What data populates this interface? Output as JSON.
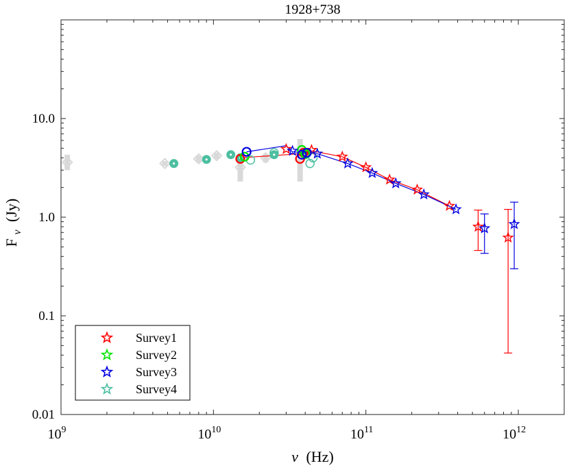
{
  "chart_data": {
    "type": "scatter",
    "title": "1928+738",
    "xlabel_symbol": "ν",
    "xlabel_unit": "(Hz)",
    "ylabel_main": "F",
    "ylabel_sub": "ν",
    "ylabel_unit": "(Jy)",
    "xscale": "log",
    "yscale": "log",
    "xlim": [
      1000000000.0,
      2000000000000.0
    ],
    "ylim": [
      0.01,
      100
    ],
    "x_ticks": [
      {
        "base": "10",
        "exp": "9",
        "value": 1000000000.0
      },
      {
        "base": "10",
        "exp": "10",
        "value": 10000000000.0
      },
      {
        "base": "10",
        "exp": "11",
        "value": 100000000000.0
      },
      {
        "base": "10",
        "exp": "12",
        "value": 1000000000000.0
      }
    ],
    "y_ticks": [
      {
        "label": "0.01",
        "value": 0.01
      },
      {
        "label": "0.1",
        "value": 0.1
      },
      {
        "label": "1.0",
        "value": 1.0
      },
      {
        "label": "10.0",
        "value": 10.0
      }
    ],
    "legend_position": "bottom-left",
    "legend": [
      {
        "label": "Survey1",
        "color": "#ff0000"
      },
      {
        "label": "Survey2",
        "color": "#00e600"
      },
      {
        "label": "Survey3",
        "color": "#0000e0"
      },
      {
        "label": "Survey4",
        "color": "#4cbfa0"
      }
    ],
    "background_points_color": "#d9d9d9",
    "background_points": [
      {
        "x": 1100000000.0,
        "y": 3.6,
        "ylo": 3.0,
        "yhi": 4.3
      },
      {
        "x": 4800000000.0,
        "y": 3.5,
        "ylo": 3.3,
        "yhi": 3.7
      },
      {
        "x": 8000000000.0,
        "y": 3.9,
        "ylo": 3.6,
        "yhi": 4.2
      },
      {
        "x": 10500000000.0,
        "y": 4.2,
        "ylo": 3.9,
        "yhi": 4.5
      },
      {
        "x": 15000000000.0,
        "y": 3.2,
        "ylo": 2.3,
        "yhi": 4.2
      },
      {
        "x": 22000000000.0,
        "y": 4.0,
        "ylo": 3.6,
        "yhi": 4.4
      },
      {
        "x": 37000000000.0,
        "y": 3.9,
        "ylo": 2.3,
        "yhi": 6.2
      },
      {
        "x": 39000000000.0,
        "y": 4.5,
        "ylo": 3.9,
        "yhi": 5.0
      }
    ],
    "survey4_points": [
      {
        "x": 5500000000.0,
        "y": 3.5,
        "filled": true
      },
      {
        "x": 9000000000.0,
        "y": 3.85,
        "filled": true
      },
      {
        "x": 13000000000.0,
        "y": 4.3,
        "filled": true
      },
      {
        "x": 25000000000.0,
        "y": 4.3,
        "filled": true
      },
      {
        "x": 15000000000.0,
        "y": 4.0,
        "filled": true
      },
      {
        "x": 17500000000.0,
        "y": 3.8,
        "filled": false
      },
      {
        "x": 25000000000.0,
        "y": 4.5,
        "filled": false
      },
      {
        "x": 40000000000.0,
        "y": 4.3,
        "filled": false
      },
      {
        "x": 43000000000.0,
        "y": 3.5,
        "filled": false
      },
      {
        "x": 45000000000.0,
        "y": 4.0,
        "filled": false
      }
    ],
    "series": [
      {
        "name": "Survey1",
        "color": "#ff0000",
        "line_x": [
          15000000000.0,
          30000000000.0,
          37000000000.0,
          44000000000.0,
          70000000000.0,
          100000000000.0,
          143000000000.0,
          217000000000.0,
          353000000000.0
        ],
        "line_y": [
          4.0,
          4.3,
          4.4,
          4.7,
          4.1,
          3.2,
          2.4,
          1.9,
          1.3
        ],
        "circles": [
          {
            "x": 15000000000.0,
            "y": 3.9
          },
          {
            "x": 37000000000.0,
            "y": 3.9
          },
          {
            "x": 39000000000.0,
            "y": 4.5
          }
        ],
        "stars": [
          {
            "x": 30000000000.0,
            "y": 4.9
          },
          {
            "x": 44000000000.0,
            "y": 4.8
          },
          {
            "x": 70000000000.0,
            "y": 4.1
          },
          {
            "x": 100000000000.0,
            "y": 3.2
          },
          {
            "x": 143000000000.0,
            "y": 2.4
          },
          {
            "x": 217000000000.0,
            "y": 1.9
          },
          {
            "x": 353000000000.0,
            "y": 1.3
          },
          {
            "x": 545000000000.0,
            "y": 0.8,
            "ylo": 0.46,
            "yhi": 1.18
          },
          {
            "x": 857000000000.0,
            "y": 0.62,
            "ylo": 0.042,
            "yhi": 1.2
          }
        ]
      },
      {
        "name": "Survey2",
        "color": "#00e600",
        "line_x": [],
        "line_y": [],
        "circles": [
          {
            "x": 16000000000.0,
            "y": 4.1
          },
          {
            "x": 38000000000.0,
            "y": 4.8
          },
          {
            "x": 40000000000.0,
            "y": 4.4
          }
        ],
        "stars": []
      },
      {
        "name": "Survey3",
        "color": "#0000e0",
        "line_x": [
          16500000000.0,
          30000000000.0,
          33000000000.0,
          48000000000.0,
          76000000000.0,
          110000000000.0,
          157000000000.0,
          240000000000.0,
          390000000000.0
        ],
        "line_y": [
          4.6,
          5.3,
          4.6,
          4.4,
          3.5,
          2.8,
          2.2,
          1.7,
          1.2
        ],
        "circles": [
          {
            "x": 16500000000.0,
            "y": 4.6
          },
          {
            "x": 38000000000.0,
            "y": 4.3
          },
          {
            "x": 41000000000.0,
            "y": 4.5
          }
        ],
        "stars": [
          {
            "x": 33000000000.0,
            "y": 4.7
          },
          {
            "x": 48000000000.0,
            "y": 4.4
          },
          {
            "x": 76000000000.0,
            "y": 3.5
          },
          {
            "x": 110000000000.0,
            "y": 2.8
          },
          {
            "x": 157000000000.0,
            "y": 2.2
          },
          {
            "x": 240000000000.0,
            "y": 1.7
          },
          {
            "x": 390000000000.0,
            "y": 1.2
          },
          {
            "x": 600000000000.0,
            "y": 0.77,
            "ylo": 0.43,
            "yhi": 1.08
          },
          {
            "x": 940000000000.0,
            "y": 0.85,
            "ylo": 0.3,
            "yhi": 1.42
          }
        ]
      }
    ]
  }
}
